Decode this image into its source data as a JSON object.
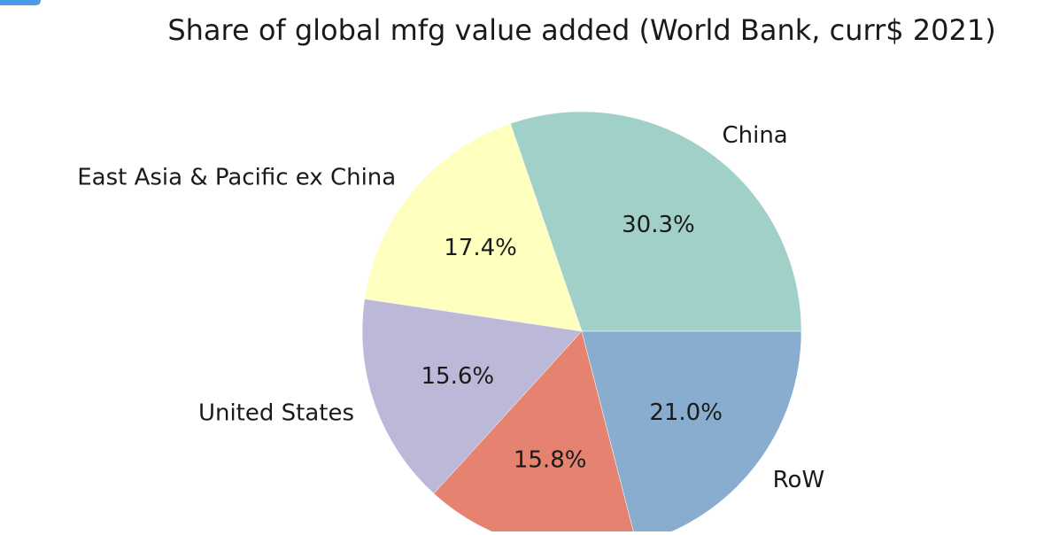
{
  "chart_data": {
    "type": "pie",
    "title": "Share of global mfg value added (World Bank, curr$ 2021)",
    "slices": [
      {
        "label": "China",
        "value": 30.3,
        "pct_label": "30.3%",
        "color": "#a1d0c8"
      },
      {
        "label": "East Asia & Pacific ex China",
        "value": 17.4,
        "pct_label": "17.4%",
        "color": "#fefebe"
      },
      {
        "label": "United States",
        "value": 15.6,
        "pct_label": "15.6%",
        "color": "#bcb9d8"
      },
      {
        "label": "",
        "value": 15.8,
        "pct_label": "15.8%",
        "color": "#e68270"
      },
      {
        "label": "RoW",
        "value": 21.0,
        "pct_label": "21.0%",
        "color": "#88adcf"
      }
    ],
    "start_angle_deg": 0,
    "direction": "counterclockwise"
  }
}
